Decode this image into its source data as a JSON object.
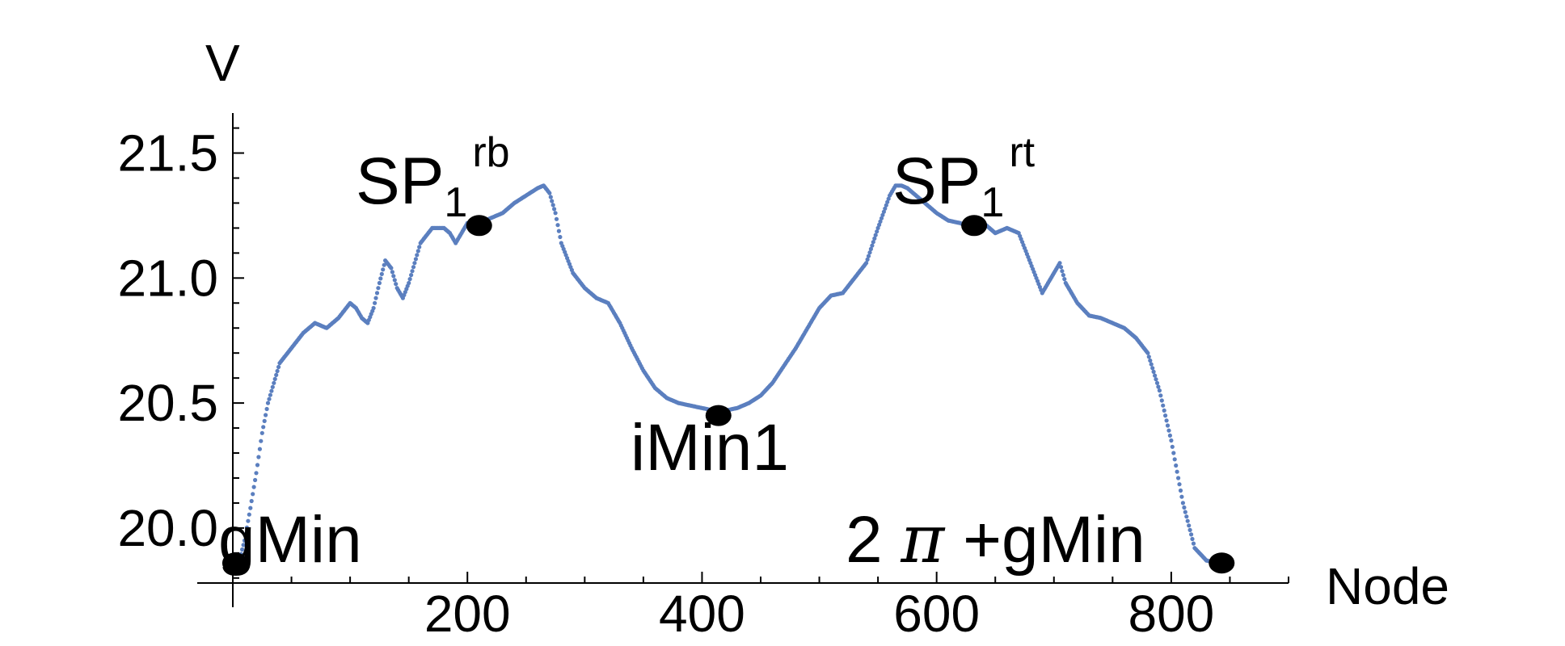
{
  "chart_data": {
    "type": "scatter",
    "title": "",
    "xlabel": "Node",
    "ylabel": "V",
    "xlim": [
      0,
      900
    ],
    "ylim": [
      19.78,
      21.66
    ],
    "x_ticks": [
      200,
      400,
      600,
      800
    ],
    "y_ticks": [
      20.0,
      20.5,
      21.0,
      21.5
    ],
    "x_tick_labels": [
      "200",
      "400",
      "600",
      "800"
    ],
    "y_tick_labels": [
      "20.0",
      "20.5",
      "21.0",
      "21.5"
    ],
    "grid": false,
    "point_color": "#5b7fbf",
    "marker_color": "#000000",
    "series": [
      {
        "x": [
          0,
          5,
          10,
          15,
          20,
          25,
          30,
          40,
          50,
          60,
          70,
          80,
          90,
          100,
          105,
          110,
          115,
          120,
          125,
          130,
          135,
          140,
          145,
          150,
          155,
          160,
          170,
          180,
          185,
          190,
          195,
          200,
          205,
          210,
          220,
          230,
          240,
          250,
          260,
          265,
          270,
          275,
          280,
          290,
          300,
          310,
          320,
          330,
          340,
          350,
          360,
          370,
          380,
          390,
          400,
          410,
          420,
          430,
          440,
          450,
          460,
          470,
          480,
          490,
          500,
          510,
          520,
          530,
          540,
          550,
          560,
          565,
          570,
          575,
          580,
          590,
          600,
          610,
          620,
          630,
          640,
          650,
          660,
          670,
          680,
          690,
          700,
          705,
          710,
          720,
          730,
          740,
          750,
          760,
          770,
          780,
          790,
          800,
          810,
          820,
          830,
          840
        ],
        "y": [
          19.86,
          19.86,
          19.95,
          20.08,
          20.22,
          20.38,
          20.5,
          20.66,
          20.72,
          20.78,
          20.82,
          20.8,
          20.84,
          20.9,
          20.88,
          20.84,
          20.82,
          20.88,
          20.98,
          21.07,
          21.04,
          20.96,
          20.92,
          20.98,
          21.06,
          21.14,
          21.2,
          21.2,
          21.18,
          21.14,
          21.18,
          21.22,
          21.2,
          21.22,
          21.24,
          21.26,
          21.3,
          21.33,
          21.36,
          21.37,
          21.34,
          21.26,
          21.14,
          21.02,
          20.96,
          20.92,
          20.9,
          20.82,
          20.72,
          20.63,
          20.56,
          20.52,
          20.5,
          20.49,
          20.48,
          20.47,
          20.47,
          20.48,
          20.5,
          20.53,
          20.58,
          20.65,
          20.72,
          20.8,
          20.88,
          20.93,
          20.94,
          21.0,
          21.06,
          21.2,
          21.33,
          21.37,
          21.37,
          21.36,
          21.34,
          21.3,
          21.26,
          21.23,
          21.22,
          21.2,
          21.22,
          21.18,
          21.2,
          21.18,
          21.06,
          20.94,
          21.02,
          21.06,
          20.98,
          20.9,
          20.85,
          20.84,
          20.82,
          20.8,
          20.76,
          20.7,
          20.55,
          20.35,
          20.1,
          19.92,
          19.87,
          19.86
        ]
      }
    ],
    "annotations": [
      {
        "label": "SP",
        "subscript": "1",
        "superscript": "rb",
        "x": 210,
        "y": 21.21
      },
      {
        "label": "SP",
        "subscript": "1",
        "superscript": "rt",
        "x": 632,
        "y": 21.21
      },
      {
        "label": "iMin1",
        "x": 414,
        "y": 20.45
      },
      {
        "label": "gMin",
        "x": 2,
        "y": 19.86
      },
      {
        "label_prefix": "2 ",
        "label_pi": "π",
        "label_suffix": " +gMin",
        "x": 843,
        "y": 19.86
      }
    ]
  }
}
